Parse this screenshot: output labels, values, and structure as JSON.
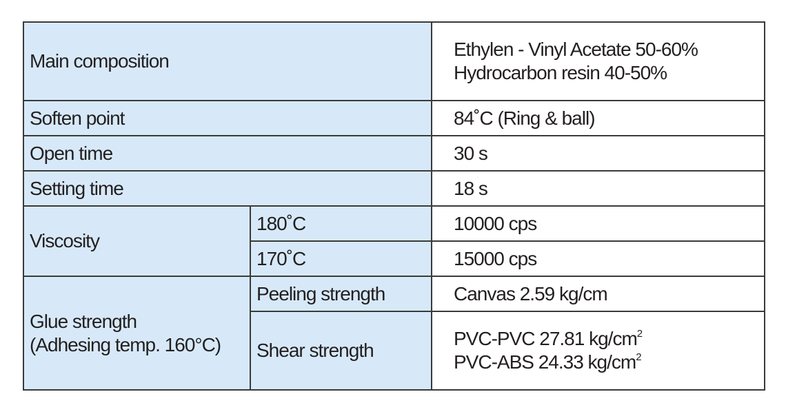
{
  "table": {
    "rows": [
      {
        "label": "Main composition",
        "value": [
          "Ethylen - Vinyl Acetate 50-60%",
          "Hydrocarbon resin 40-50%"
        ]
      },
      {
        "label": "Soften point",
        "value": "84˚C (Ring & ball)"
      },
      {
        "label": "Open time",
        "value": "30 s"
      },
      {
        "label": "Setting time",
        "value": "18 s"
      },
      {
        "label": "Viscosity",
        "sub": [
          {
            "label": "180˚C",
            "value": "10000 cps"
          },
          {
            "label": "170˚C",
            "value": "15000 cps"
          }
        ]
      },
      {
        "label": [
          "Glue strength",
          "(Adhesing temp. 160°C)"
        ],
        "sub": [
          {
            "label": "Peeling strength",
            "value": "Canvas 2.59 kg/cm"
          },
          {
            "label": "Shear strength",
            "value": [
              {
                "text": "PVC-PVC 27.81 kg/cm",
                "sup": "2"
              },
              {
                "text": "PVC-ABS 24.33 kg/cm",
                "sup": "2"
              }
            ]
          }
        ]
      }
    ]
  }
}
